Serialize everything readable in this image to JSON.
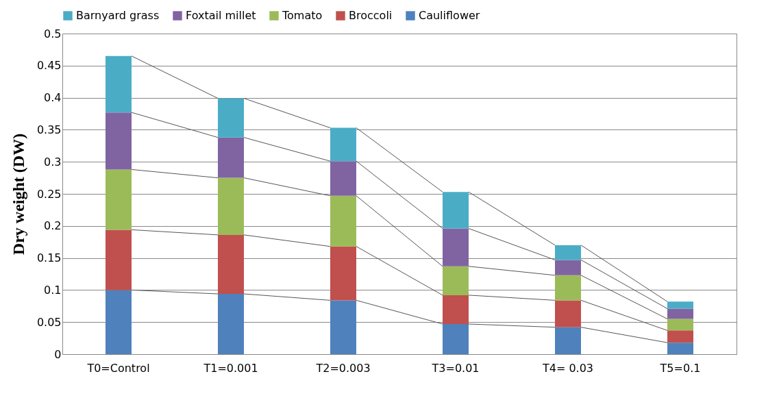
{
  "chart_data": {
    "type": "bar",
    "stacked": true,
    "ylabel": "Dry weight (DW)",
    "categories": [
      "T0=Control",
      "T1=0.001",
      "T2=0.003",
      "T3=0.01",
      "T4= 0.03",
      "T5=0.1"
    ],
    "series": [
      {
        "name": "Cauliflower",
        "color": "#4f81bd",
        "values": [
          0.1,
          0.094,
          0.084,
          0.047,
          0.042,
          0.018
        ]
      },
      {
        "name": "Broccoli",
        "color": "#c0504d",
        "values": [
          0.094,
          0.092,
          0.084,
          0.045,
          0.042,
          0.019
        ]
      },
      {
        "name": "Tomato",
        "color": "#9bbb59",
        "values": [
          0.094,
          0.089,
          0.079,
          0.045,
          0.039,
          0.018
        ]
      },
      {
        "name": "Foxtail millet",
        "color": "#8064a2",
        "values": [
          0.089,
          0.063,
          0.054,
          0.059,
          0.024,
          0.016
        ]
      },
      {
        "name": "Barnyard grass",
        "color": "#4bacc6",
        "values": [
          0.088,
          0.061,
          0.052,
          0.057,
          0.023,
          0.011
        ]
      }
    ],
    "ylim": [
      0,
      0.5
    ],
    "yticks": [
      0,
      0.05,
      0.1,
      0.15,
      0.2,
      0.25,
      0.3,
      0.35,
      0.4,
      0.45,
      0.5
    ],
    "grid": "y",
    "legend": "top"
  }
}
